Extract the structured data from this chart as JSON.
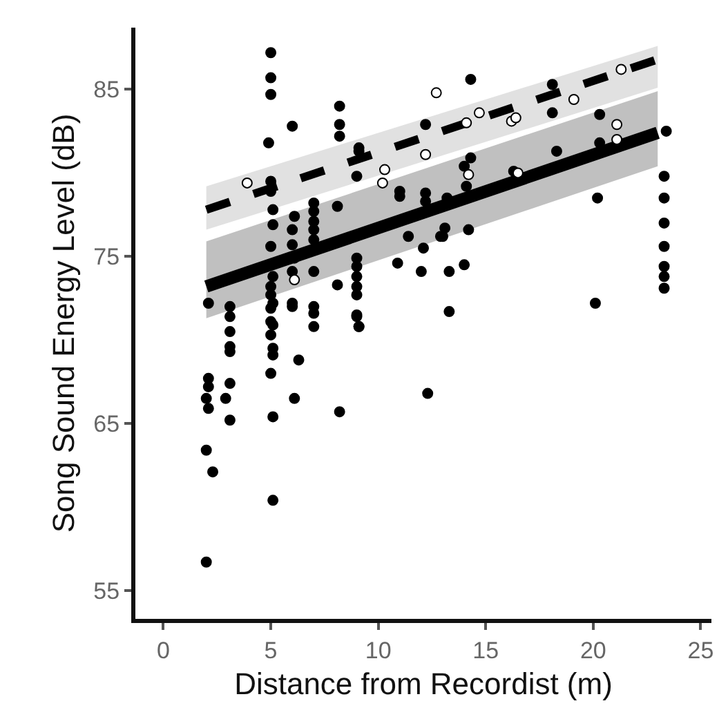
{
  "chart_data": {
    "type": "scatter",
    "xlabel": "Distance from Recordist (m)",
    "ylabel": "Song Sound Energy Level (dB)",
    "xlim": [
      -1.3,
      25.5
    ],
    "ylim": [
      53.3,
      88.7
    ],
    "xticks": [
      0,
      5,
      10,
      15,
      20,
      25
    ],
    "yticks": [
      55,
      65,
      75,
      85
    ],
    "grid": false,
    "marker": "circle",
    "series": [
      {
        "type": "line",
        "color": "#000000",
        "line_style": "solid",
        "marker": "none",
        "x": [
          2,
          23
        ],
        "values": [
          73.2,
          82.4
        ],
        "lower": [
          71.3,
          80.4
        ],
        "upper": [
          75.9,
          84.9
        ]
      },
      {
        "type": "line",
        "color": "#000000",
        "line_style": "dashed",
        "marker": "none",
        "x": [
          2,
          23
        ],
        "values": [
          77.8,
          86.8
        ],
        "lower": [
          76.6,
          85.1
        ],
        "upper": [
          79.2,
          87.6
        ]
      },
      {
        "color": "#000000",
        "x": [
          2.1,
          2.1,
          2.0,
          2.1,
          2.0,
          2.3,
          2.0,
          2.1,
          3.1,
          3.1,
          3.1,
          3.1,
          3.1,
          3.1,
          2.9,
          3.1,
          5.0,
          5.0,
          5.0,
          4.9,
          5.0,
          5.0,
          5.1,
          5.1,
          5.0,
          5.1,
          5.0,
          5.0,
          5.1,
          5.0,
          5.0,
          5.1,
          5.0,
          5.1,
          5.1,
          5.0,
          5.1,
          5.1,
          6.0,
          6.1,
          6.0,
          6.0,
          6.1,
          6.0,
          6.0,
          6.3,
          6.1,
          6.0,
          7.0,
          7.0,
          7.0,
          7.0,
          7.0,
          7.0,
          7.0,
          7.0,
          7.0,
          8.1,
          8.2,
          8.2,
          8.2,
          8.1,
          8.2,
          9.1,
          9.1,
          9.0,
          9.0,
          9.0,
          9.0,
          9.0,
          9.0,
          9.0,
          9.1,
          9.0,
          9.1,
          11.0,
          11.0,
          12.2,
          12.2,
          11.4,
          10.9,
          12.1,
          12.0,
          12.2,
          12.9,
          14.3,
          13.3,
          13.3,
          14.0,
          13.1,
          13.0,
          14.2,
          14.0,
          14.3,
          14.1,
          13.2,
          16.3,
          18.1,
          18.1,
          18.3,
          20.2,
          20.3,
          20.3,
          20.1,
          23.4,
          12.3,
          23.3,
          23.3,
          23.3,
          23.3,
          23.3,
          23.3,
          23.3
        ],
        "values": [
          67.7,
          67.2,
          66.5,
          65.9,
          63.4,
          62.1,
          56.7,
          72.2,
          71.4,
          70.5,
          69.6,
          69.3,
          67.4,
          65.2,
          66.5,
          72.0,
          87.2,
          85.7,
          84.7,
          81.8,
          79.5,
          78.9,
          77.8,
          76.9,
          75.6,
          73.8,
          73.2,
          72.7,
          72.2,
          71.1,
          71.9,
          70.9,
          70.3,
          69.5,
          69.1,
          68.0,
          65.4,
          60.4,
          82.8,
          77.4,
          76.6,
          75.7,
          74.9,
          74.1,
          72.2,
          68.8,
          66.5,
          72.0,
          78.2,
          77.7,
          77.1,
          76.6,
          76.0,
          74.1,
          72.0,
          71.6,
          70.8,
          78.0,
          84.0,
          82.9,
          82.2,
          73.3,
          65.7,
          81.5,
          81.3,
          79.8,
          74.9,
          74.4,
          73.8,
          73.2,
          72.7,
          71.5,
          70.8,
          71.4,
          70.8,
          78.9,
          78.6,
          78.8,
          78.3,
          76.2,
          74.6,
          75.5,
          74.1,
          82.9,
          76.2,
          85.6,
          74.1,
          71.7,
          74.5,
          76.7,
          76.2,
          76.6,
          80.4,
          80.9,
          79.2,
          78.5,
          80.1,
          85.3,
          83.6,
          81.3,
          78.5,
          83.5,
          81.8,
          72.2,
          82.5,
          66.8,
          79.8,
          78.5,
          77.0,
          75.6,
          74.4,
          73.8,
          73.1
        ]
      },
      {
        "color": "#ffffff",
        "x": [
          3.9,
          10.3,
          10.2,
          12.2,
          12.7,
          6.1,
          14.1,
          14.7,
          14.2,
          16.2,
          16.4,
          16.5,
          19.1,
          21.3,
          21.1,
          21.1
        ],
        "values": [
          79.4,
          80.2,
          79.4,
          81.1,
          84.8,
          73.6,
          83.0,
          83.6,
          79.9,
          83.1,
          83.3,
          80.0,
          84.4,
          86.2,
          82.9,
          82.0
        ]
      }
    ]
  }
}
